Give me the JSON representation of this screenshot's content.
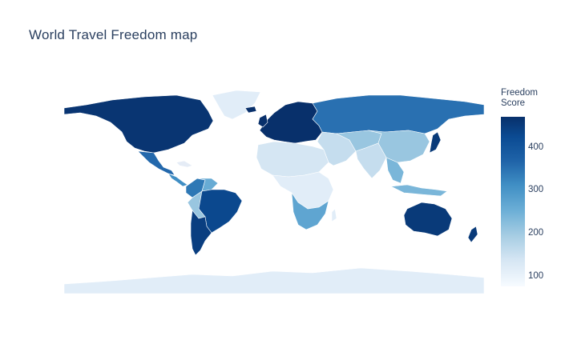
{
  "title": "World Travel Freedom map",
  "colorbar": {
    "title_line1": "Freedom",
    "title_line2": "Score",
    "ticks": [
      "400",
      "300",
      "200",
      "100"
    ],
    "tick_values": [
      400,
      300,
      200,
      100
    ],
    "range": [
      75,
      470
    ],
    "colorscale": [
      "#f7fbff",
      "#d4e5f3",
      "#a6cde3",
      "#6baed6",
      "#3f8ec4",
      "#1f63a8",
      "#0b4b93",
      "#08306b"
    ]
  },
  "map": {
    "projection": "equirectangular",
    "land_color": "#e5ecf6",
    "border_color": "#ffffff",
    "regions": [
      {
        "name": "North America",
        "score": 460
      },
      {
        "name": "Greenland",
        "score": 110
      },
      {
        "name": "Mexico",
        "score": 350
      },
      {
        "name": "Central America",
        "score": 300
      },
      {
        "name": "Colombia",
        "score": 330
      },
      {
        "name": "Venezuela",
        "score": 250
      },
      {
        "name": "Brazil",
        "score": 420
      },
      {
        "name": "Bolivia",
        "score": 200
      },
      {
        "name": "Argentina",
        "score": 440
      },
      {
        "name": "Western Europe",
        "score": 470
      },
      {
        "name": "Russia",
        "score": 340
      },
      {
        "name": "Central Asia",
        "score": 200
      },
      {
        "name": "China",
        "score": 200
      },
      {
        "name": "Middle East",
        "score": 150
      },
      {
        "name": "North Africa",
        "score": 130
      },
      {
        "name": "Central Africa",
        "score": 110
      },
      {
        "name": "Southern Africa",
        "score": 260
      },
      {
        "name": "India",
        "score": 150
      },
      {
        "name": "Southeast Asia",
        "score": 230
      },
      {
        "name": "Japan",
        "score": 450
      },
      {
        "name": "Australia",
        "score": 450
      },
      {
        "name": "New Zealand",
        "score": 450
      },
      {
        "name": "Antarctica",
        "score": 110
      }
    ]
  }
}
